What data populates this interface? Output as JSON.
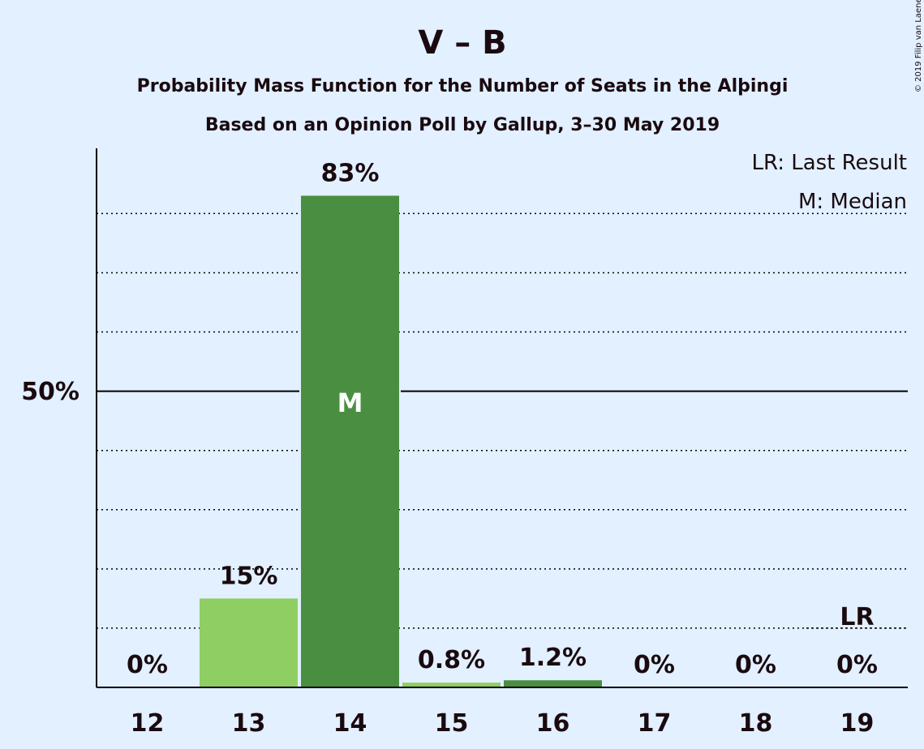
{
  "header": {
    "title": "V – B",
    "subtitle1": "Probability Mass Function for the Number of Seats in the Alþingi",
    "subtitle2": "Based on an Opinion Poll by Gallup, 3–30 May 2019"
  },
  "copyright": "© 2019 Filip van Laenen",
  "legend": {
    "lr": "LR: Last Result",
    "median": "M: Median"
  },
  "y_axis": {
    "label_50": "50%"
  },
  "colors": {
    "background": "#e2f0ff",
    "bar_light": "#8fce62",
    "bar_dark": "#4a8f41",
    "axis": "#000000"
  },
  "chart_data": {
    "type": "bar",
    "categories": [
      "12",
      "13",
      "14",
      "15",
      "16",
      "17",
      "18",
      "19"
    ],
    "values": [
      0,
      15,
      83,
      0.8,
      1.2,
      0,
      0,
      0
    ],
    "data_labels": [
      "0%",
      "15%",
      "83%",
      "0.8%",
      "1.2%",
      "0%",
      "0%",
      "0%"
    ],
    "bar_shades": [
      "light",
      "light",
      "dark",
      "light",
      "dark",
      "light",
      "dark",
      "light"
    ],
    "ylim": [
      0,
      91
    ],
    "grid_dotted": [
      10,
      20,
      30,
      40,
      60,
      70,
      80
    ],
    "grid_solid": [
      50
    ],
    "median_category": "14",
    "median_marker": "M",
    "last_result_category": "19",
    "last_result_marker": "LR",
    "last_result_level": 10
  }
}
